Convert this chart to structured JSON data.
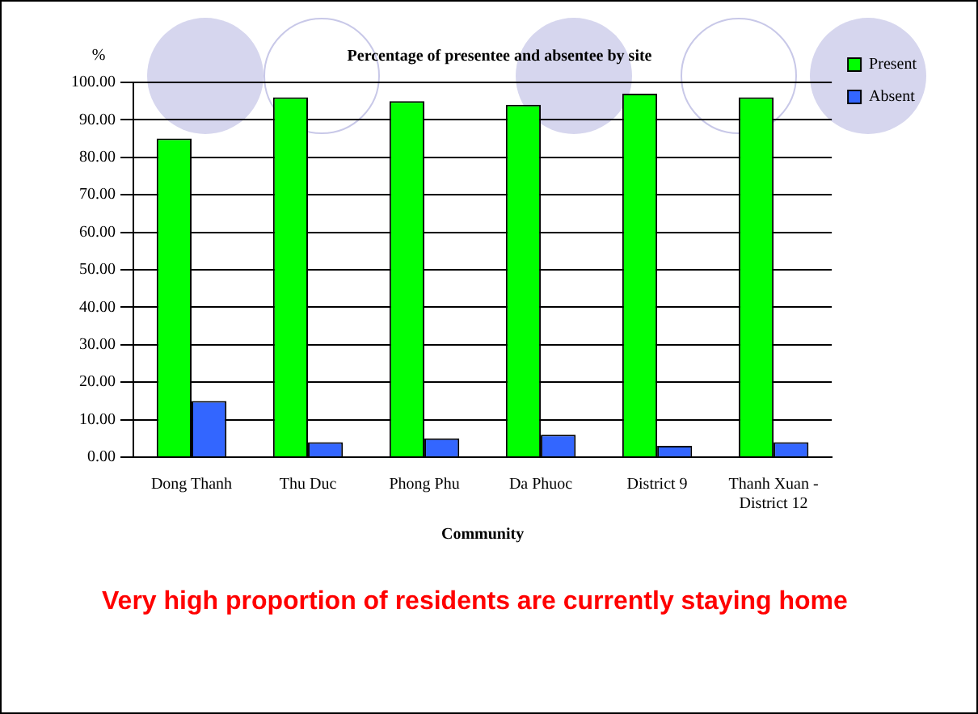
{
  "chart_data": {
    "type": "bar",
    "title": "Percentage of presentee and absentee by site",
    "xlabel": "Community",
    "ylabel": "%",
    "categories": [
      "Dong Thanh",
      "Thu Duc",
      "Phong Phu",
      "Da Phuoc",
      "District 9",
      "Thanh Xuan - District 12"
    ],
    "series": [
      {
        "name": "Present",
        "color": "#00ff00",
        "values": [
          85,
          96,
          95,
          94,
          97,
          96
        ]
      },
      {
        "name": "Absent",
        "color": "#3366ff",
        "values": [
          15,
          4,
          5,
          6,
          3,
          4
        ]
      }
    ],
    "ylim": [
      0,
      100
    ],
    "yticks": [
      {
        "value": 0,
        "label": "0.00"
      },
      {
        "value": 10,
        "label": "10.00"
      },
      {
        "value": 20,
        "label": "20.00"
      },
      {
        "value": 30,
        "label": "30.00"
      },
      {
        "value": 40,
        "label": "40.00"
      },
      {
        "value": 50,
        "label": "50.00"
      },
      {
        "value": 60,
        "label": "60.00"
      },
      {
        "value": 70,
        "label": "70.00"
      },
      {
        "value": 80,
        "label": "80.00"
      },
      {
        "value": 90,
        "label": "90.00"
      },
      {
        "value": 100,
        "label": "100.00"
      }
    ],
    "grid": "y",
    "legend": "right",
    "annotations": [
      "Very high proportion of residents are currently staying home"
    ]
  }
}
